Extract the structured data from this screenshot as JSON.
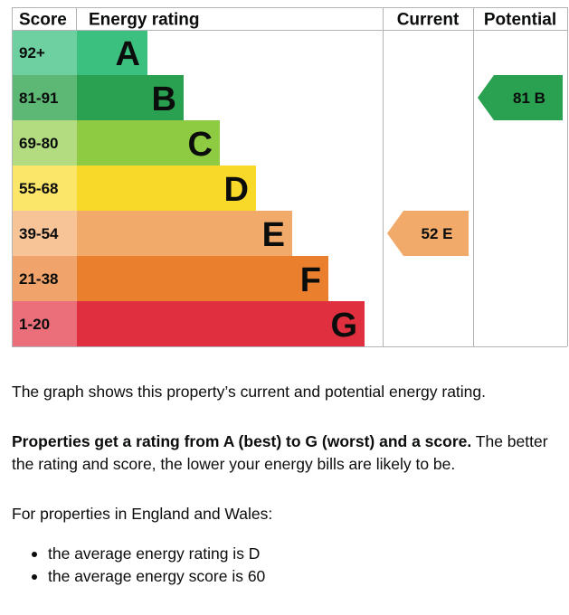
{
  "chart_data": {
    "type": "table",
    "headers": {
      "score": "Score",
      "rating": "Energy rating",
      "current": "Current",
      "potential": "Potential"
    },
    "bands": [
      {
        "range": "92+",
        "letter": "A",
        "color": "#3bc07f",
        "score_color": "#6ecfa1"
      },
      {
        "range": "81-91",
        "letter": "B",
        "color": "#29a150",
        "score_color": "#5db875"
      },
      {
        "range": "69-80",
        "letter": "C",
        "color": "#8fcb42",
        "score_color": "#b3dc80"
      },
      {
        "range": "55-68",
        "letter": "D",
        "color": "#f8d929",
        "score_color": "#fbe66a"
      },
      {
        "range": "39-54",
        "letter": "E",
        "color": "#f2aa6b",
        "score_color": "#f6c497"
      },
      {
        "range": "21-38",
        "letter": "F",
        "color": "#ea7f2e",
        "score_color": "#f0a46b"
      },
      {
        "range": "1-20",
        "letter": "G",
        "color": "#e03040",
        "score_color": "#ea6f7a"
      }
    ],
    "current": {
      "score": 52,
      "letter": "E",
      "label": "52  E",
      "band_index": 4,
      "color": "#f2aa6b"
    },
    "potential": {
      "score": 81,
      "letter": "B",
      "label": "81  B",
      "band_index": 1,
      "color": "#29a150"
    }
  },
  "text": {
    "intro": "The graph shows this property’s current and potential energy rating.",
    "summary_bold": "Properties get a rating from A (best) to G (worst) and a score.",
    "summary_rest": " The better the rating and score, the lower your energy bills are likely to be.",
    "region": "For properties in England and Wales:",
    "bullets": [
      "the average energy rating is D",
      "the average energy score is 60"
    ]
  }
}
